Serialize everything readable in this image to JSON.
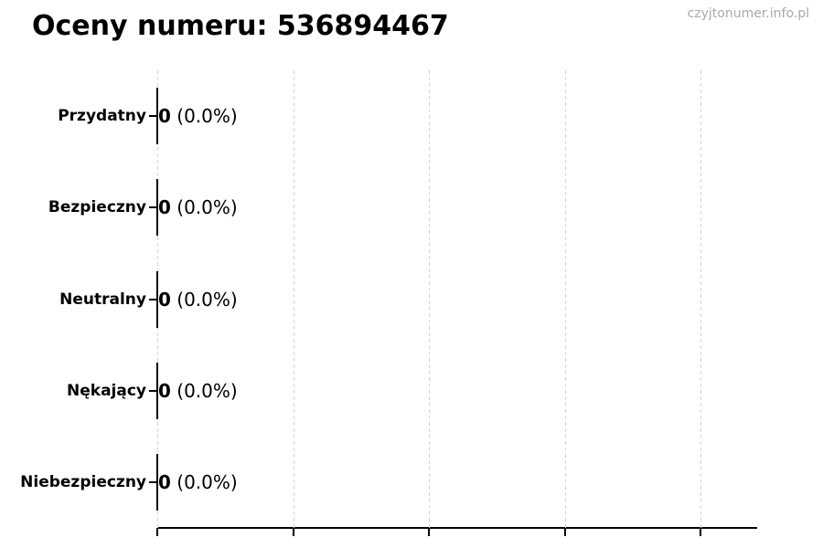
{
  "page": {
    "watermark": "czyjtonumer.info.pl"
  },
  "chart_data": {
    "type": "bar",
    "orientation": "horizontal",
    "title": "Oceny numeru: 536894467",
    "categories": [
      "Przydatny",
      "Bezpieczny",
      "Neutralny",
      "Nękający",
      "Niebezpieczny"
    ],
    "values": [
      0,
      0,
      0,
      0,
      0
    ],
    "annotations": [
      {
        "count": "0",
        "percent": "(0.0%)"
      },
      {
        "count": "0",
        "percent": "(0.0%)"
      },
      {
        "count": "0",
        "percent": "(0.0%)"
      },
      {
        "count": "0",
        "percent": "(0.0%)"
      },
      {
        "count": "0",
        "percent": "(0.0%)"
      }
    ],
    "xlabel": "",
    "ylabel": "",
    "xlim": [
      0,
      1.104
    ],
    "x_gridlines": [
      0,
      0.25,
      0.5,
      0.75,
      1.0
    ],
    "x_tick_labels_visible": false,
    "grid": true,
    "legend": false,
    "colors": {
      "grid": "#d4d4d4",
      "axis": "#000000",
      "bar_edge": "#000000",
      "text": "#000000",
      "watermark": "#a9a9a9"
    }
  }
}
